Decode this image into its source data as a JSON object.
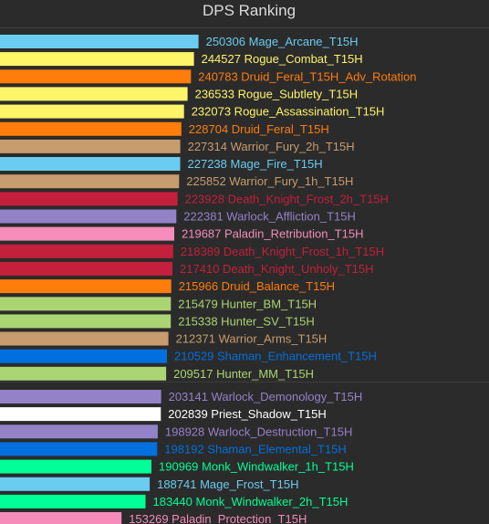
{
  "chart_data": {
    "type": "bar",
    "orientation": "horizontal",
    "title": "DPS Ranking",
    "xlim": [
      0,
      260000
    ],
    "series": [
      {
        "label": "250306",
        "name": "Mage_Arcane_T15H",
        "value": 250306,
        "color": "#69ccf0"
      },
      {
        "label": "244527",
        "name": "Rogue_Combat_T15H",
        "value": 244527,
        "color": "#fff569"
      },
      {
        "label": "240783",
        "name": "Druid_Feral_T15H_Adv_Rotation",
        "value": 240783,
        "color": "#ff7d0a"
      },
      {
        "label": "236533",
        "name": "Rogue_Subtlety_T15H",
        "value": 236533,
        "color": "#fff569"
      },
      {
        "label": "232073",
        "name": "Rogue_Assassination_T15H",
        "value": 232073,
        "color": "#fff569"
      },
      {
        "label": "228704",
        "name": "Druid_Feral_T15H",
        "value": 228704,
        "color": "#ff7d0a"
      },
      {
        "label": "227314",
        "name": "Warrior_Fury_2h_T15H",
        "value": 227314,
        "color": "#c79c6e"
      },
      {
        "label": "227238",
        "name": "Mage_Fire_T15H",
        "value": 227238,
        "color": "#69ccf0"
      },
      {
        "label": "225852",
        "name": "Warrior_Fury_1h_T15H",
        "value": 225852,
        "color": "#c79c6e"
      },
      {
        "label": "223928",
        "name": "Death_Knight_Frost_2h_T15H",
        "value": 223928,
        "color": "#c41f3b"
      },
      {
        "label": "222381",
        "name": "Warlock_Affliction_T15H",
        "value": 222381,
        "color": "#9482c9"
      },
      {
        "label": "219687",
        "name": "Paladin_Retribution_T15H",
        "value": 219687,
        "color": "#f58cba"
      },
      {
        "label": "218389",
        "name": "Death_Knight_Frost_1h_T15H",
        "value": 218389,
        "color": "#c41f3b"
      },
      {
        "label": "217410",
        "name": "Death_Knight_Unholy_T15H",
        "value": 217410,
        "color": "#c41f3b"
      },
      {
        "label": "215966",
        "name": "Druid_Balance_T15H",
        "value": 215966,
        "color": "#ff7d0a"
      },
      {
        "label": "215479",
        "name": "Hunter_BM_T15H",
        "value": 215479,
        "color": "#abd473"
      },
      {
        "label": "215338",
        "name": "Hunter_SV_T15H",
        "value": 215338,
        "color": "#abd473"
      },
      {
        "label": "212371",
        "name": "Warrior_Arms_T15H",
        "value": 212371,
        "color": "#c79c6e"
      },
      {
        "label": "210529",
        "name": "Shaman_Enhancement_T15H",
        "value": 210529,
        "color": "#0070de"
      },
      {
        "label": "209517",
        "name": "Hunter_MM_T15H",
        "value": 209517,
        "color": "#abd473"
      },
      {
        "label": "203141",
        "name": "Warlock_Demonology_T15H",
        "value": 203141,
        "color": "#9482c9"
      },
      {
        "label": "202839",
        "name": "Priest_Shadow_T15H",
        "value": 202839,
        "color": "#ffffff"
      },
      {
        "label": "198928",
        "name": "Warlock_Destruction_T15H",
        "value": 198928,
        "color": "#9482c9"
      },
      {
        "label": "198192",
        "name": "Shaman_Elemental_T15H",
        "value": 198192,
        "color": "#0070de"
      },
      {
        "label": "190969",
        "name": "Monk_Windwalker_1h_T15H",
        "value": 190969,
        "color": "#00ff96"
      },
      {
        "label": "188741",
        "name": "Mage_Frost_T15H",
        "value": 188741,
        "color": "#69ccf0"
      },
      {
        "label": "183440",
        "name": "Monk_Windwalker_2h_T15H",
        "value": 183440,
        "color": "#00ff96"
      },
      {
        "label": "153269",
        "name": "Paladin_Protection_T15H",
        "value": 153269,
        "color": "#f58cba"
      }
    ]
  }
}
